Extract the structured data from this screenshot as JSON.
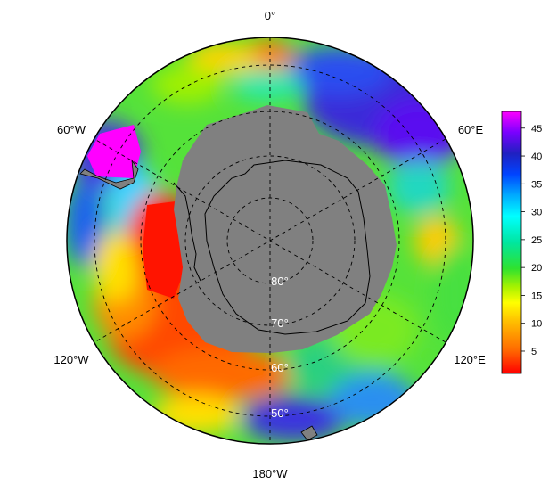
{
  "map": {
    "projection": "south polar stereographic",
    "longitude_labels": [
      "0°",
      "60°E",
      "120°E",
      "180°W",
      "120°W",
      "60°W"
    ],
    "latitude_labels": [
      "80°",
      "70°",
      "60°",
      "50°"
    ]
  },
  "colorbar": {
    "min": 1,
    "max": 48,
    "ticks": [
      "5",
      "10",
      "15",
      "20",
      "25",
      "30",
      "35",
      "40",
      "45"
    ],
    "colors": [
      "#ff0000",
      "#ff6a00",
      "#ffc000",
      "#ffff00",
      "#a6f200",
      "#2fe22f",
      "#00e6a0",
      "#00ffff",
      "#00aaff",
      "#0044ff",
      "#2020c0",
      "#7a00ff",
      "#ff00ff"
    ]
  },
  "colors": {
    "land": "#808080",
    "background": "#ffffff"
  }
}
